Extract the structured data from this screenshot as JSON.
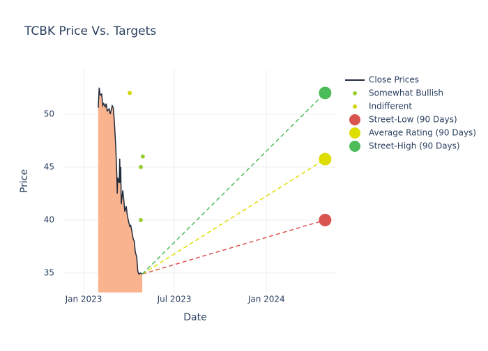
{
  "chart_data": {
    "type": "line",
    "title": "TCBK Price Vs. Targets",
    "xlabel": "Date",
    "ylabel": "Price",
    "xlim": [
      "2022-11-23",
      "2024-05-16"
    ],
    "ylim": [
      33.16,
      54.2
    ],
    "xticks": [
      {
        "value": "2023-01-01",
        "label": "Jan 2023"
      },
      {
        "value": "2023-07-01",
        "label": "Jul 2023"
      },
      {
        "value": "2024-01-01",
        "label": "Jan 2024"
      }
    ],
    "yticks": [
      35,
      40,
      45,
      50
    ],
    "grid": true,
    "series": [
      {
        "name": "Close Prices",
        "type": "area",
        "color": "#1f2a3c",
        "fill": "#f9b48f",
        "x": [
          "2023-01-30",
          "2023-02-01",
          "2023-02-03",
          "2023-02-06",
          "2023-02-08",
          "2023-02-10",
          "2023-02-13",
          "2023-02-15",
          "2023-02-17",
          "2023-02-21",
          "2023-02-23",
          "2023-02-27",
          "2023-03-01",
          "2023-03-03",
          "2023-03-06",
          "2023-03-08",
          "2023-03-09",
          "2023-03-10",
          "2023-03-13",
          "2023-03-14",
          "2023-03-15",
          "2023-03-16",
          "2023-03-17",
          "2023-03-20",
          "2023-03-22",
          "2023-03-24",
          "2023-03-27",
          "2023-03-29",
          "2023-03-31",
          "2023-04-03",
          "2023-04-05",
          "2023-04-10",
          "2023-04-12",
          "2023-04-14",
          "2023-04-17",
          "2023-04-19",
          "2023-04-21",
          "2023-04-24",
          "2023-04-28"
        ],
        "values": [
          50.6,
          52.5,
          51.8,
          51.9,
          50.8,
          51.0,
          50.7,
          51.0,
          50.3,
          50.5,
          50.0,
          50.8,
          50.6,
          49.5,
          47.0,
          44.5,
          42.5,
          44.0,
          43.5,
          45.8,
          43.5,
          45.0,
          41.5,
          42.8,
          42.0,
          40.8,
          41.3,
          40.5,
          40.0,
          39.4,
          39.5,
          38.2,
          38.0,
          37.0,
          36.5,
          35.2,
          34.9,
          35.0,
          34.9
        ]
      },
      {
        "name": "Somewhat Bullish",
        "type": "scatter",
        "color": "#9acd32",
        "x": [
          "2023-04-25",
          "2023-04-29",
          "2023-04-25"
        ],
        "values": [
          45,
          46,
          40
        ]
      },
      {
        "name": "Indifferent",
        "type": "scatter",
        "color": "#d4d40a",
        "x": [
          "2023-04-03"
        ],
        "values": [
          52
        ]
      },
      {
        "name": "Street-Low (90 Days)",
        "type": "target",
        "color": "#d9534f",
        "x": [
          "2024-04-27"
        ],
        "values": [
          40
        ]
      },
      {
        "name": "Average Rating (90 Days)",
        "type": "target",
        "color": "#dddd00",
        "x": [
          "2024-04-27"
        ],
        "values": [
          45.75
        ]
      },
      {
        "name": "Street-High (90 Days)",
        "type": "target",
        "color": "#4cbb5a",
        "x": [
          "2024-04-27"
        ],
        "values": [
          52
        ]
      }
    ]
  }
}
